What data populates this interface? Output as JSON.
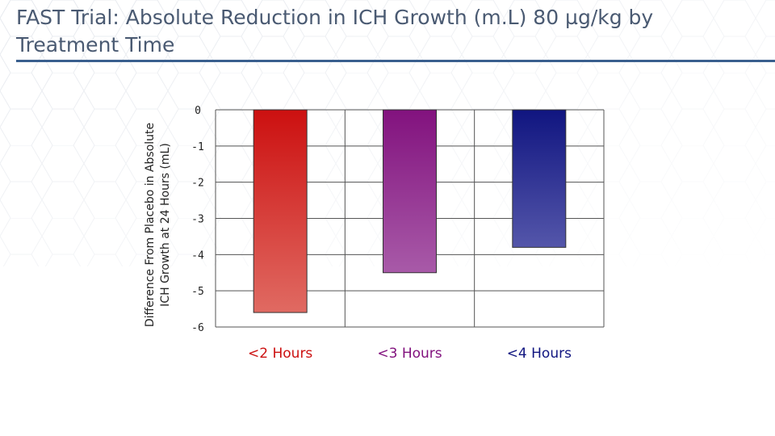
{
  "slide": {
    "title": "FAST Trial: Absolute Reduction in ICH Growth (m.L) 80 µg/kg by Treatment Time"
  },
  "colors": {
    "title_text": "#4a5a72",
    "title_rule": "#3a5f8e",
    "grid": "#555555"
  },
  "chart_data": {
    "type": "bar",
    "title": "",
    "xlabel": "",
    "ylabel_lines": [
      "Difference From Placebo in Absolute",
      "ICH Growth at 24 Hours (mL)"
    ],
    "categories": [
      "<2 Hours",
      "<3 Hours",
      "<4 Hours"
    ],
    "values": [
      -5.6,
      -4.5,
      -3.8
    ],
    "bar_colors": [
      {
        "top": "#cc1010",
        "bottom": "#e06a62",
        "label": "#cc1010"
      },
      {
        "top": "#82127e",
        "bottom": "#a85aa8",
        "label": "#82127e"
      },
      {
        "top": "#101580",
        "bottom": "#5456aa",
        "label": "#101580"
      }
    ],
    "ylim": [
      -6,
      0
    ],
    "yticks": [
      "0",
      "-1",
      "-2",
      "-3",
      "-4",
      "-5",
      "-6"
    ],
    "grid": true,
    "legend": "none"
  }
}
